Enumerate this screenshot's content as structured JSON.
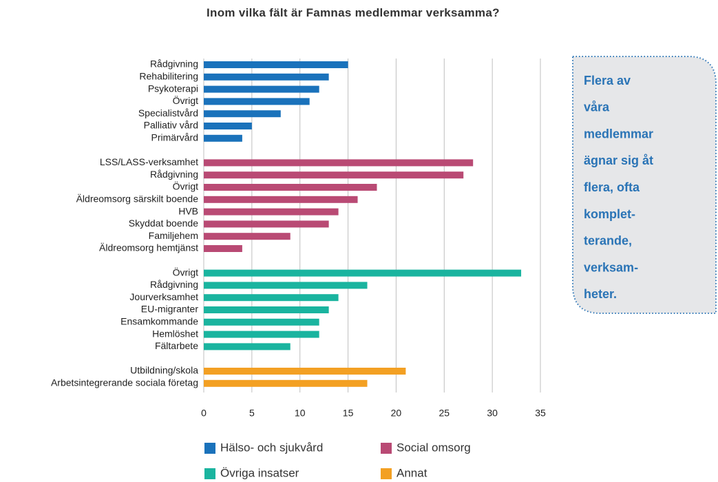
{
  "chart_data": {
    "type": "barh",
    "title": "Inom vilka fält är Famnas medlemmar verksamma?",
    "annotation": [
      "Flera av",
      "våra",
      "medlemmar",
      "ägnar sig åt",
      "flera, ofta",
      "komplet-",
      "terande,",
      "verksam-",
      "heter."
    ],
    "xlim": [
      0,
      35
    ],
    "xticks": [
      0,
      5,
      10,
      15,
      20,
      25,
      30,
      35
    ],
    "grid": true,
    "legend": "bottom",
    "series": [
      {
        "name": "Hälso- och sjukvård",
        "color": "#1a72bb",
        "categories": [
          "Rådgivning",
          "Rehabilitering",
          "Psykoterapi",
          "Övrigt",
          "Specialistvård",
          "Palliativ vård",
          "Primärvård"
        ],
        "values": [
          15,
          13,
          12,
          11,
          8,
          5,
          4
        ]
      },
      {
        "name": "Social omsorg",
        "color": "#b94a74",
        "categories": [
          "LSS/LASS-verksamhet",
          "Rådgivning",
          "Övrigt",
          "Äldreomsorg särskilt boende",
          "HVB",
          "Skyddat boende",
          "Familjehem",
          "Äldreomsorg hemtjänst"
        ],
        "values": [
          28,
          27,
          18,
          16,
          14,
          13,
          9,
          4
        ]
      },
      {
        "name": "Övriga insatser",
        "color": "#1ab49f",
        "categories": [
          "Övrigt",
          "Rådgivning",
          "Jourverksamhet",
          "EU-migranter",
          "Ensamkommande",
          "Hemlöshet",
          "Fältarbete"
        ],
        "values": [
          33,
          17,
          14,
          13,
          12,
          12,
          9
        ]
      },
      {
        "name": "Annat",
        "color": "#f3a023",
        "categories": [
          "Utbildning/skola",
          "Arbetsintegrerande sociala företag"
        ],
        "values": [
          21,
          17
        ]
      }
    ]
  }
}
